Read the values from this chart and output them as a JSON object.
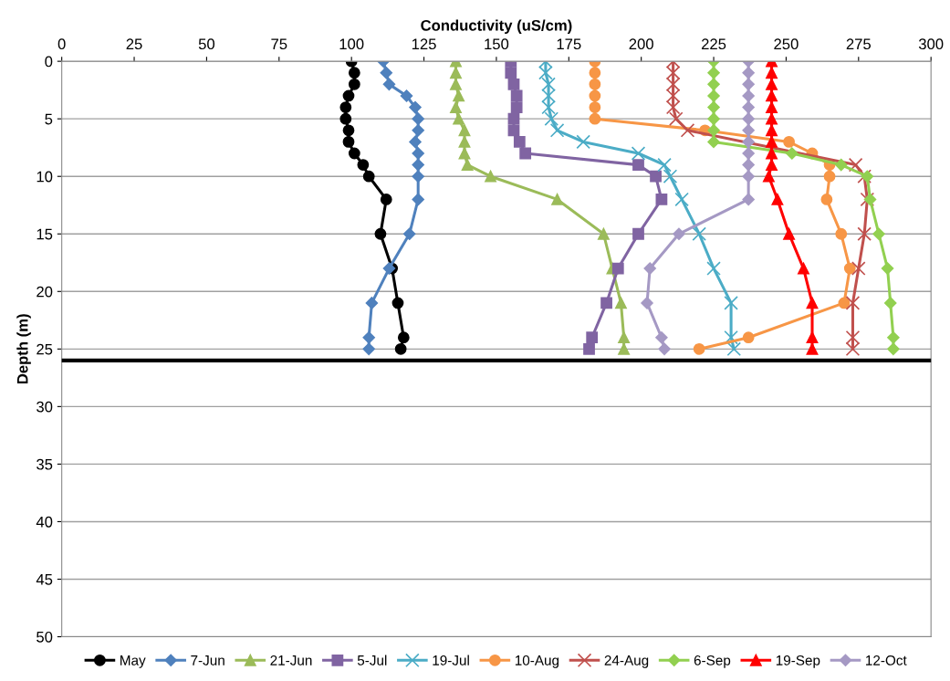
{
  "chart_data": {
    "type": "line",
    "xlabel": "Conductivity (uS/cm)",
    "ylabel": "Depth (m)",
    "xlim": [
      0,
      300
    ],
    "xticks": [
      0,
      25,
      50,
      75,
      100,
      125,
      150,
      175,
      200,
      225,
      250,
      275,
      300
    ],
    "ylim": [
      50,
      0
    ],
    "yticks": [
      0,
      5,
      10,
      15,
      20,
      25,
      30,
      35,
      40,
      45,
      50
    ],
    "grid": "y",
    "legend": "bottom",
    "line_style": "solid",
    "ref_lines": [
      {
        "axis": "y",
        "value": 26,
        "color": "#000000"
      }
    ],
    "series": [
      {
        "name": "May",
        "color": "#000000",
        "marker": "circle",
        "x": [
          100,
          101,
          101,
          99,
          98,
          98,
          99,
          99,
          101,
          104,
          106,
          112,
          110,
          114,
          116,
          118,
          117
        ],
        "values": [
          0,
          1,
          2,
          3,
          4,
          5,
          6,
          7,
          8,
          9,
          10,
          12,
          15,
          18,
          21,
          24,
          25
        ]
      },
      {
        "name": "7-Jun",
        "color": "#4f81bd",
        "marker": "diamond",
        "x": [
          111,
          112,
          113,
          119,
          122,
          123,
          123,
          122,
          123,
          123,
          123,
          123,
          120,
          113,
          107,
          106,
          106
        ],
        "values": [
          0,
          1,
          2,
          3,
          4,
          5,
          6,
          7,
          8,
          9,
          10,
          12,
          15,
          18,
          21,
          24,
          25
        ]
      },
      {
        "name": "21-Jun",
        "color": "#9bbb59",
        "marker": "triangle",
        "x": [
          136,
          136,
          136,
          137,
          136,
          137,
          139,
          139,
          139,
          140,
          148,
          171,
          187,
          190,
          193,
          194,
          194
        ],
        "values": [
          0,
          1,
          2,
          3,
          4,
          5,
          6,
          7,
          8,
          9,
          10,
          12,
          15,
          18,
          21,
          24,
          25
        ]
      },
      {
        "name": "5-Jul",
        "color": "#8064a2",
        "marker": "square",
        "x": [
          155,
          155,
          156,
          157,
          157,
          156,
          156,
          158,
          160,
          199,
          205,
          207,
          199,
          192,
          188,
          183,
          182
        ],
        "values": [
          0,
          1,
          2,
          3,
          4,
          5,
          6,
          7,
          8,
          9,
          10,
          12,
          15,
          18,
          21,
          24,
          25
        ]
      },
      {
        "name": "19-Jul",
        "color": "#4bacc6",
        "marker": "cross",
        "x": [
          167,
          167,
          168,
          168,
          168,
          169,
          171,
          180,
          199,
          208,
          210,
          214,
          220,
          225,
          231,
          231,
          232
        ],
        "values": [
          0,
          1,
          2,
          3,
          4,
          5,
          6,
          7,
          8,
          9,
          10,
          12,
          15,
          18,
          21,
          24,
          25
        ]
      },
      {
        "name": "10-Aug",
        "color": "#f79646",
        "marker": "circle",
        "x": [
          184,
          184,
          184,
          184,
          184,
          184,
          222,
          251,
          259,
          265,
          265,
          264,
          269,
          272,
          270,
          237,
          220
        ],
        "values": [
          0,
          1,
          2,
          3,
          4,
          5,
          6,
          7,
          8,
          9,
          10,
          12,
          15,
          18,
          21,
          24,
          25
        ]
      },
      {
        "name": "24-Aug",
        "color": "#c0504d",
        "marker": "cross",
        "x": [
          211,
          211,
          211,
          211,
          211,
          212,
          216,
          274,
          277,
          278,
          277,
          275,
          273,
          273,
          273
        ],
        "values": [
          0,
          1,
          2,
          3,
          4,
          5,
          6,
          9,
          10,
          12,
          15,
          18,
          21,
          24,
          25
        ]
      },
      {
        "name": "6-Sep",
        "color": "#92d050",
        "marker": "diamond",
        "x": [
          225,
          225,
          225,
          225,
          225,
          225,
          225,
          225,
          252,
          269,
          278,
          279,
          282,
          285,
          286,
          287,
          287
        ],
        "values": [
          0,
          1,
          2,
          3,
          4,
          5,
          6,
          7,
          8,
          9,
          10,
          12,
          15,
          18,
          21,
          24,
          25
        ]
      },
      {
        "name": "19-Sep",
        "color": "#ff0000",
        "marker": "triangle",
        "x": [
          245,
          245,
          245,
          245,
          245,
          245,
          245,
          245,
          245,
          245,
          244,
          247,
          251,
          256,
          259,
          259,
          259
        ],
        "values": [
          0,
          1,
          2,
          3,
          4,
          5,
          6,
          7,
          8,
          9,
          10,
          12,
          15,
          18,
          21,
          24,
          25
        ]
      },
      {
        "name": "12-Oct",
        "color": "#a599c4",
        "marker": "diamond",
        "x": [
          237,
          237,
          237,
          237,
          237,
          237,
          237,
          237,
          237,
          237,
          237,
          237,
          213,
          203,
          202,
          207,
          208
        ],
        "values": [
          0,
          1,
          2,
          3,
          4,
          5,
          6,
          7,
          8,
          9,
          10,
          12,
          15,
          18,
          21,
          24,
          25
        ]
      }
    ]
  }
}
